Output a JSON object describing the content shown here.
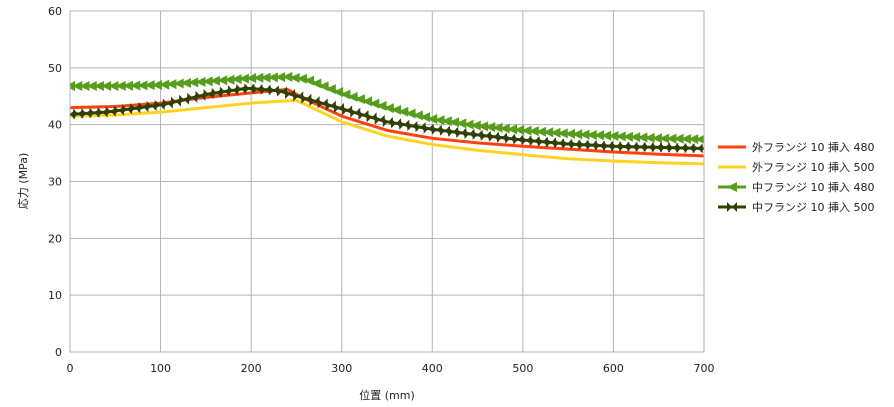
{
  "chart_data": {
    "type": "line",
    "title": "",
    "xlabel": "位置 (mm)",
    "ylabel": "応力 (MPa)",
    "xlim": [
      0,
      700
    ],
    "ylim": [
      0,
      60
    ],
    "xticks": [
      0,
      100,
      200,
      300,
      400,
      500,
      600,
      700
    ],
    "yticks": [
      0,
      10,
      20,
      30,
      40,
      50,
      60
    ],
    "grid": true,
    "legend_position": "right",
    "series": [
      {
        "name": "外フランジ 10 挿入 480",
        "color": "#ff420e",
        "marker": "none",
        "x": [
          0,
          50,
          100,
          150,
          200,
          240,
          260,
          300,
          350,
          400,
          450,
          500,
          550,
          600,
          650,
          700
        ],
        "y": [
          43,
          43.2,
          43.8,
          44.8,
          45.6,
          46.2,
          44.5,
          41.5,
          39.0,
          37.6,
          36.8,
          36.2,
          35.7,
          35.2,
          34.8,
          34.5
        ]
      },
      {
        "name": "外フランジ 10 挿入 500",
        "color": "#ffd320",
        "marker": "none",
        "x": [
          0,
          50,
          100,
          150,
          200,
          250,
          300,
          350,
          400,
          450,
          500,
          550,
          600,
          650,
          700
        ],
        "y": [
          41.5,
          41.7,
          42.2,
          43.0,
          43.8,
          44.3,
          40.5,
          38.0,
          36.5,
          35.5,
          34.7,
          34.0,
          33.6,
          33.3,
          33.1
        ]
      },
      {
        "name": "中フランジ 10 挿入 480",
        "color": "#579d1c",
        "marker": "triangle-left",
        "x": [
          0,
          50,
          100,
          150,
          200,
          240,
          260,
          300,
          350,
          400,
          450,
          500,
          550,
          600,
          650,
          700
        ],
        "y": [
          46.8,
          46.8,
          47.0,
          47.6,
          48.2,
          48.4,
          48.0,
          45.5,
          43.0,
          41.0,
          39.8,
          39.0,
          38.4,
          38.0,
          37.6,
          37.4
        ]
      },
      {
        "name": "中フランジ 10 挿入 500",
        "color": "#314004",
        "marker": "bowtie",
        "x": [
          0,
          40,
          105,
          150,
          195,
          230,
          260,
          300,
          350,
          400,
          450,
          500,
          550,
          600,
          650,
          700
        ],
        "y": [
          41.8,
          42.2,
          43.6,
          45.3,
          46.4,
          46.0,
          44.6,
          42.8,
          40.5,
          39.2,
          38.2,
          37.3,
          36.6,
          36.2,
          36.0,
          35.8
        ]
      }
    ]
  }
}
